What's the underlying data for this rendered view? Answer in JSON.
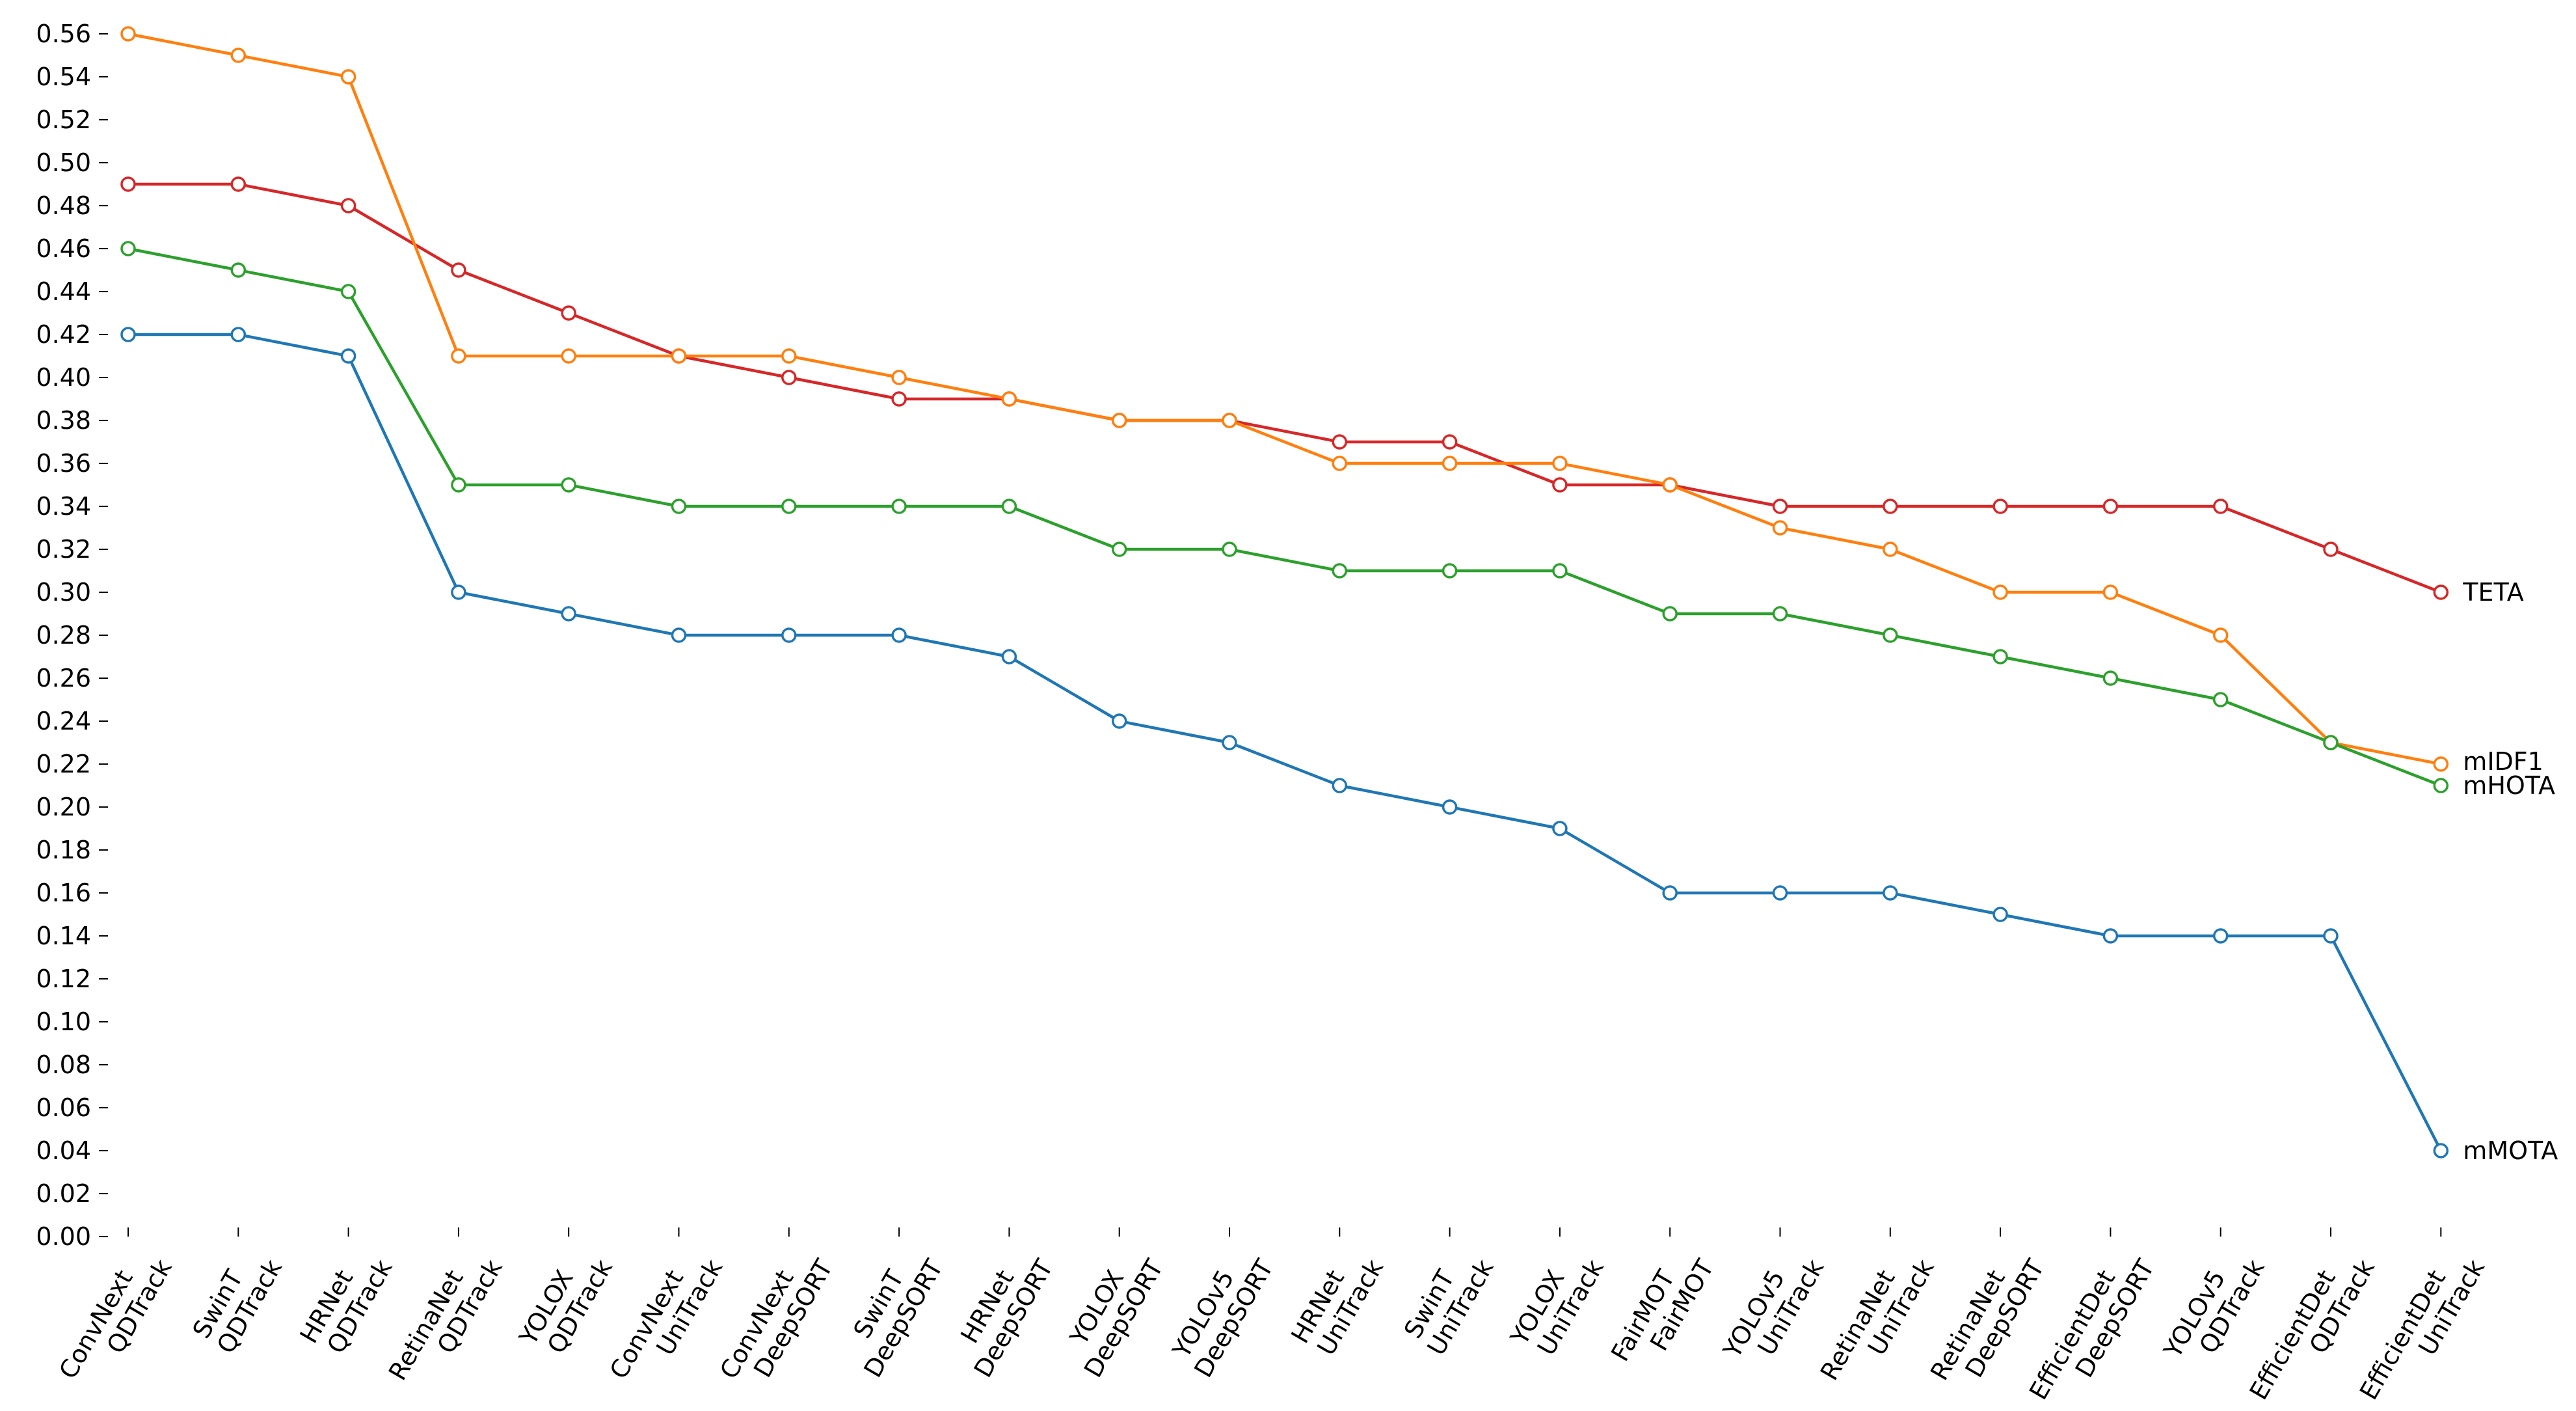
{
  "chart_data": {
    "type": "line",
    "categories": [
      [
        "ConvNext",
        "QDTrack"
      ],
      [
        "SwinT",
        "QDTrack"
      ],
      [
        "HRNet",
        "QDTrack"
      ],
      [
        "RetinaNet",
        "QDTrack"
      ],
      [
        "YOLOX",
        "QDTrack"
      ],
      [
        "ConvNext",
        "UniTrack"
      ],
      [
        "ConvNext",
        "DeepSORT"
      ],
      [
        "SwinT",
        "DeepSORT"
      ],
      [
        "HRNet",
        "DeepSORT"
      ],
      [
        "YOLOX",
        "DeepSORT"
      ],
      [
        "YOLOv5",
        "DeepSORT"
      ],
      [
        "HRNet",
        "UniTrack"
      ],
      [
        "SwinT",
        "UniTrack"
      ],
      [
        "YOLOX",
        "UniTrack"
      ],
      [
        "FairMOT",
        "FairMOT"
      ],
      [
        "YOLOv5",
        "UniTrack"
      ],
      [
        "RetinaNet",
        "UniTrack"
      ],
      [
        "RetinaNet",
        "DeepSORT"
      ],
      [
        "EfficientDet",
        "DeepSORT"
      ],
      [
        "YOLOv5",
        "QDTrack"
      ],
      [
        "EfficientDet",
        "QDTrack"
      ],
      [
        "EfficientDet",
        "UniTrack"
      ]
    ],
    "series": [
      {
        "name": "TETA",
        "color": "#d62728",
        "values": [
          0.49,
          0.49,
          0.48,
          0.45,
          0.43,
          0.41,
          0.4,
          0.39,
          0.39,
          0.38,
          0.38,
          0.37,
          0.37,
          0.35,
          0.35,
          0.34,
          0.34,
          0.34,
          0.34,
          0.34,
          0.32,
          0.3
        ]
      },
      {
        "name": "mIDF1",
        "color": "#ff7f0e",
        "values": [
          0.56,
          0.55,
          0.54,
          0.41,
          0.41,
          0.41,
          0.41,
          0.4,
          0.39,
          0.38,
          0.38,
          0.36,
          0.36,
          0.36,
          0.35,
          0.33,
          0.32,
          0.3,
          0.3,
          0.28,
          0.23,
          0.22
        ]
      },
      {
        "name": "mHOTA",
        "color": "#2ca02c",
        "values": [
          0.46,
          0.45,
          0.44,
          0.35,
          0.35,
          0.34,
          0.34,
          0.34,
          0.34,
          0.32,
          0.32,
          0.31,
          0.31,
          0.31,
          0.29,
          0.29,
          0.28,
          0.27,
          0.26,
          0.25,
          0.23,
          0.21
        ]
      },
      {
        "name": "mMOTA",
        "color": "#1f77b4",
        "values": [
          0.42,
          0.42,
          0.41,
          0.3,
          0.29,
          0.28,
          0.28,
          0.28,
          0.27,
          0.24,
          0.23,
          0.21,
          0.2,
          0.19,
          0.16,
          0.16,
          0.16,
          0.15,
          0.14,
          0.14,
          0.14,
          0.04
        ]
      }
    ],
    "yticks": [
      "0.00",
      "0.02",
      "0.04",
      "0.06",
      "0.08",
      "0.10",
      "0.12",
      "0.14",
      "0.16",
      "0.18",
      "0.20",
      "0.22",
      "0.24",
      "0.26",
      "0.28",
      "0.30",
      "0.32",
      "0.34",
      "0.36",
      "0.38",
      "0.40",
      "0.42",
      "0.44",
      "0.46",
      "0.48",
      "0.50",
      "0.52",
      "0.54",
      "0.56"
    ],
    "ylim": [
      0.0,
      0.56
    ],
    "xlabel": "",
    "ylabel": "",
    "title": "",
    "grid": false,
    "legend": "end-of-line labels"
  }
}
